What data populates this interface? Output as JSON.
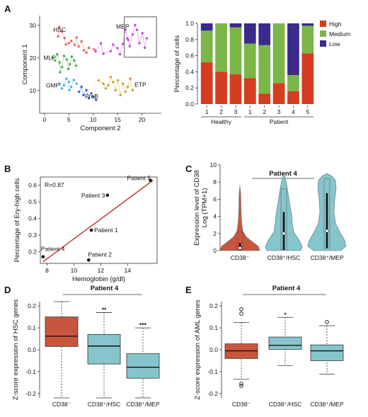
{
  "figure": {
    "panels": [
      "A",
      "B",
      "C",
      "D",
      "E"
    ]
  },
  "chart_data": [
    {
      "id": "A-left",
      "type": "scatter",
      "xlabel": "Component 2",
      "ylabel": "Component 1",
      "xlim": [
        -1,
        24
      ],
      "ylim": [
        3,
        33
      ],
      "xticks": [
        0,
        5,
        10,
        15,
        20
      ],
      "yticks": [
        10,
        20,
        30
      ],
      "annotations": [
        "HSC",
        "MEP",
        "MLP",
        "GMP",
        "ProB",
        "ETP"
      ],
      "clusters": [
        {
          "label": "HSC",
          "color": "#e8636a",
          "points": [
            [
              2.8,
              26.6
            ],
            [
              4.1,
              26.1
            ],
            [
              5.5,
              25.2
            ],
            [
              6.2,
              24.0
            ],
            [
              7.0,
              23.5
            ],
            [
              5.0,
              24.6
            ],
            [
              8.1,
              22.3
            ],
            [
              3.6,
              28.1
            ],
            [
              8.6,
              21.6
            ],
            [
              6.6,
              26.3
            ],
            [
              4.4,
              24.1
            ],
            [
              9.1,
              23.1
            ],
            [
              7.6,
              25.1
            ],
            [
              10.2,
              22.6
            ],
            [
              3.0,
              29.5
            ]
          ]
        },
        {
          "label": "MEP",
          "color": "#c44bd6",
          "points": [
            [
              10.5,
              22.0
            ],
            [
              12.1,
              21.3
            ],
            [
              13.6,
              22.1
            ],
            [
              15.0,
              23.0
            ],
            [
              16.1,
              24.3
            ],
            [
              17.0,
              26.0
            ],
            [
              18.1,
              27.2
            ],
            [
              19.0,
              28.6
            ],
            [
              20.1,
              27.6
            ],
            [
              21.0,
              26.0
            ],
            [
              19.5,
              24.5
            ],
            [
              17.5,
              23.6
            ],
            [
              16.6,
              28.6
            ],
            [
              18.6,
              30.1
            ],
            [
              14.1,
              24.1
            ],
            [
              11.6,
              24.5
            ],
            [
              20.6,
              23.1
            ],
            [
              15.5,
              21.1
            ],
            [
              17.2,
              25.5
            ]
          ]
        },
        {
          "label": "MLP",
          "color": "#4bb04b",
          "points": [
            [
              1.6,
              20.1
            ],
            [
              2.2,
              19.2
            ],
            [
              3.1,
              18.6
            ],
            [
              4.0,
              20.6
            ],
            [
              4.6,
              19.5
            ],
            [
              5.2,
              18.1
            ],
            [
              3.6,
              17.2
            ],
            [
              2.6,
              21.1
            ],
            [
              5.6,
              20.4
            ],
            [
              6.1,
              19.2
            ],
            [
              4.9,
              16.6
            ],
            [
              3.2,
              15.6
            ],
            [
              6.5,
              17.6
            ]
          ]
        },
        {
          "label": "GMP",
          "color": "#45b6d8",
          "points": [
            [
              3.1,
              12.1
            ],
            [
              4.0,
              11.6
            ],
            [
              5.0,
              12.6
            ],
            [
              5.5,
              11.1
            ],
            [
              6.0,
              13.2
            ],
            [
              4.5,
              13.6
            ],
            [
              6.6,
              12.1
            ],
            [
              3.6,
              10.6
            ],
            [
              5.1,
              10.1
            ]
          ]
        },
        {
          "label": "ProB",
          "color": "#3a5fc4",
          "points": [
            [
              7.1,
              9.6
            ],
            [
              8.0,
              8.6
            ],
            [
              9.1,
              7.6
            ],
            [
              10.0,
              8.1
            ],
            [
              8.6,
              10.1
            ],
            [
              7.6,
              11.1
            ],
            [
              9.6,
              9.1
            ],
            [
              10.6,
              7.1
            ]
          ]
        },
        {
          "label": "ETP",
          "color": "#c9a227",
          "points": [
            [
              11.1,
              13.1
            ],
            [
              12.1,
              12.1
            ],
            [
              13.1,
              11.6
            ],
            [
              14.1,
              12.6
            ],
            [
              15.1,
              13.1
            ],
            [
              16.1,
              12.1
            ],
            [
              17.1,
              11.1
            ],
            [
              16.6,
              9.6
            ],
            [
              15.6,
              8.6
            ],
            [
              14.6,
              10.1
            ],
            [
              13.6,
              14.1
            ],
            [
              12.6,
              10.6
            ],
            [
              18.1,
              10.1
            ],
            [
              17.6,
              13.6
            ]
          ]
        }
      ]
    },
    {
      "id": "A-right",
      "type": "bar",
      "stacked": true,
      "ylabel": "Percentage of cells",
      "ylim": [
        0,
        1
      ],
      "yticks": [
        "0.0",
        "0.2",
        "0.4",
        "0.6",
        "0.8",
        "1.0"
      ],
      "categories": [
        "1",
        "2",
        "3",
        "1",
        "2",
        "3",
        "4",
        "5"
      ],
      "groups": [
        {
          "label": "Healthy",
          "from": 0,
          "to": 2
        },
        {
          "label": "Patient",
          "from": 3,
          "to": 7
        }
      ],
      "series": [
        {
          "name": "High",
          "color": "#d43d1f",
          "values": [
            0.52,
            0.4,
            0.37,
            0.32,
            0.13,
            0.26,
            0.16,
            0.63
          ]
        },
        {
          "name": "Medium",
          "color": "#7ab648",
          "values": [
            0.39,
            0.6,
            0.58,
            0.43,
            0.6,
            0.74,
            0.2,
            0.34
          ]
        },
        {
          "name": "Low",
          "color": "#3a2a8c",
          "values": [
            0.09,
            0.0,
            0.05,
            0.25,
            0.27,
            0.0,
            0.64,
            0.03
          ]
        }
      ],
      "legend": "right"
    },
    {
      "id": "B",
      "type": "scatter",
      "xlabel": "Hemoglobin (g/dl)",
      "ylabel": "Percentage of Ery-high cells",
      "xlim": [
        7.5,
        16.2
      ],
      "ylim": [
        0.13,
        0.65
      ],
      "xticks": [
        8,
        10,
        12,
        14
      ],
      "yticks": [
        "0.2",
        "0.3",
        "0.4",
        "0.5",
        "0.6"
      ],
      "annotation": "R=0.87",
      "points": [
        {
          "label": "Patient 5",
          "x": 15.7,
          "y": 0.63
        },
        {
          "label": "Patient 3",
          "x": 12.5,
          "y": 0.54
        },
        {
          "label": "Patient 1",
          "x": 11.3,
          "y": 0.33
        },
        {
          "label": "Patient 2",
          "x": 11.1,
          "y": 0.15
        },
        {
          "label": "Patient 4",
          "x": 7.7,
          "y": 0.17
        }
      ],
      "fit": {
        "x0": 7.7,
        "y0": 0.14,
        "x1": 15.9,
        "y1": 0.63
      }
    },
    {
      "id": "C",
      "type": "violin",
      "title": "Patient 4",
      "ylabel": "Expression level of CD38",
      "ylabel2": "Log (TPM+1)",
      "ylim": [
        0,
        10
      ],
      "yticks": [
        0,
        2,
        4,
        6,
        8,
        10
      ],
      "categories": [
        "CD38⁻",
        "CD38⁺/HSC",
        "CD38⁺/MEP"
      ],
      "colors": [
        "#c8553d",
        "#86c5cc",
        "#86c5cc"
      ],
      "violins": [
        {
          "max": 7.6,
          "q1": 0.05,
          "median": 0.3,
          "q3": 0.9,
          "whisker": 2.2
        },
        {
          "max": 9.0,
          "q1": 0.1,
          "median": 2.0,
          "q3": 4.5,
          "whisker": 7.2
        },
        {
          "max": 9.0,
          "q1": 0.3,
          "median": 2.3,
          "q3": 6.7,
          "whisker": 8.4
        }
      ]
    },
    {
      "id": "D",
      "type": "box",
      "title": "Patient 4",
      "ylabel": "Z-score expression of HSC genes",
      "ylim": [
        -0.22,
        0.22
      ],
      "yticks": [
        "-0.2",
        "-0.1",
        "0.0",
        "0.1",
        "0.2"
      ],
      "categories": [
        "CD38⁻",
        "CD38⁺/HSC",
        "CD38⁺/MEP"
      ],
      "colors": [
        "#c8553d",
        "#86c5cc",
        "#86c5cc"
      ],
      "significance": [
        "",
        "**",
        "***"
      ],
      "boxes": [
        {
          "min": -0.22,
          "q1": 0.015,
          "median": 0.062,
          "q3": 0.15,
          "max": 0.22
        },
        {
          "min": -0.22,
          "q1": -0.065,
          "median": 0.017,
          "q3": 0.07,
          "max": 0.17
        },
        {
          "min": -0.22,
          "q1": -0.13,
          "median": -0.08,
          "q3": -0.018,
          "max": 0.1
        }
      ]
    },
    {
      "id": "E",
      "type": "box",
      "title": "Patient 4",
      "ylabel": "Z-score expression of AML genes",
      "ylim": [
        -0.22,
        0.22
      ],
      "yticks": [
        "-0.2",
        "-0.1",
        "0.0",
        "0.1",
        "0.2"
      ],
      "categories": [
        "CD38⁻",
        "CD38⁺/HSC",
        "CD38⁺/MEP"
      ],
      "colors": [
        "#c8553d",
        "#86c5cc",
        "#86c5cc"
      ],
      "significance": [
        "",
        "*",
        ""
      ],
      "boxes": [
        {
          "min": -0.135,
          "q1": -0.04,
          "median": -0.005,
          "q3": 0.027,
          "max": 0.125,
          "outliers": [
            0.185,
            0.165,
            -0.155,
            -0.165
          ]
        },
        {
          "min": -0.072,
          "q1": 0.002,
          "median": 0.02,
          "q3": 0.058,
          "max": 0.148
        },
        {
          "min": -0.112,
          "q1": -0.05,
          "median": -0.005,
          "q3": 0.022,
          "max": 0.11,
          "outliers": [
            0.127
          ]
        }
      ]
    }
  ]
}
